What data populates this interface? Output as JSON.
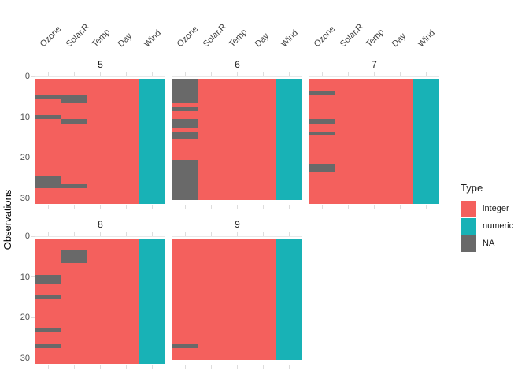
{
  "chart_data": {
    "type": "heatmap",
    "description": "vis_dat style missing-data heatmap of a data frame, faceted by month",
    "ylabel": "Observations",
    "columns": [
      "Ozone",
      "Solar.R",
      "Temp",
      "Day",
      "Wind"
    ],
    "column_types": [
      "integer",
      "integer",
      "integer",
      "integer",
      "numeric"
    ],
    "y_ticks": [
      0,
      10,
      20,
      30
    ],
    "facet_titles": [
      "5",
      "6",
      "7",
      "8",
      "9"
    ],
    "legend": {
      "title": "Type",
      "items": [
        {
          "label": "integer",
          "color": "#F4605D"
        },
        {
          "label": "numeric",
          "color": "#18B2B6"
        },
        {
          "label": "NA",
          "color": "#696969"
        }
      ]
    },
    "panels": [
      {
        "facet": "5",
        "n_obs": 31,
        "na_cells": {
          "Ozone": [
            5,
            10,
            25,
            26,
            27
          ],
          "Solar.R": [
            5,
            6,
            11,
            27
          ]
        }
      },
      {
        "facet": "6",
        "n_obs": 30,
        "na_cells": {
          "Ozone": [
            1,
            2,
            3,
            4,
            5,
            6,
            8,
            11,
            12,
            14,
            15,
            21,
            22,
            23,
            24,
            25,
            26,
            27,
            28,
            29,
            30
          ]
        }
      },
      {
        "facet": "7",
        "n_obs": 31,
        "na_cells": {
          "Ozone": [
            4,
            11,
            14,
            22,
            23
          ]
        }
      },
      {
        "facet": "8",
        "n_obs": 31,
        "na_cells": {
          "Ozone": [
            10,
            11,
            15,
            23,
            27
          ],
          "Solar.R": [
            4,
            5,
            6
          ]
        }
      },
      {
        "facet": "9",
        "n_obs": 30,
        "na_cells": {
          "Ozone": [
            27
          ]
        }
      }
    ],
    "colors": {
      "grid": "#e8e8e8",
      "tick": "#dddddd",
      "axis_text": "#4d4d4d",
      "strip_text": "#1a1a1a"
    }
  }
}
